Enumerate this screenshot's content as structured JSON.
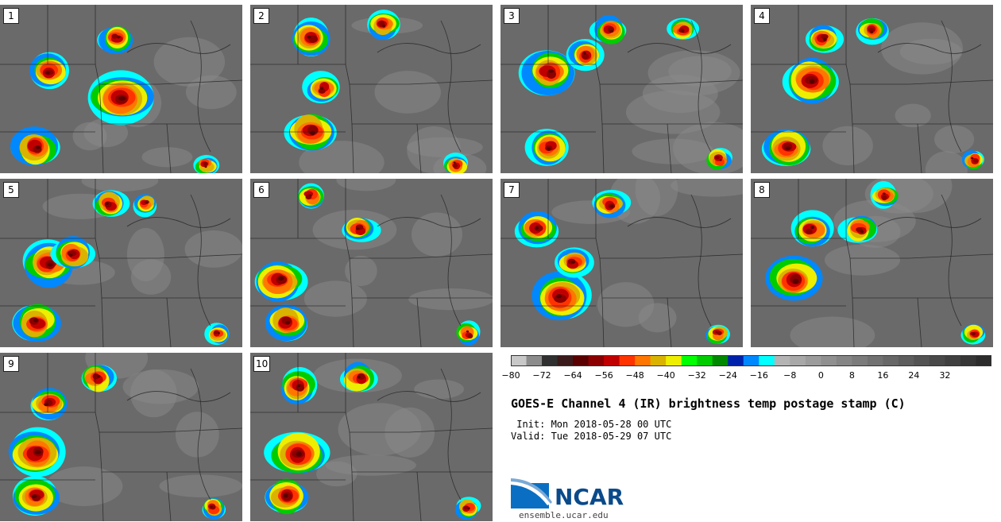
{
  "panels": [
    {
      "label": "1",
      "seed": 11,
      "blobs": [
        [
          0.5,
          0.55,
          0.55
        ],
        [
          0.2,
          0.4,
          0.35
        ],
        [
          0.15,
          0.85,
          0.4
        ],
        [
          0.48,
          0.2,
          0.3
        ],
        [
          0.85,
          0.95,
          0.2
        ]
      ]
    },
    {
      "label": "2",
      "seed": 23,
      "blobs": [
        [
          0.25,
          0.75,
          0.45
        ],
        [
          0.25,
          0.2,
          0.35
        ],
        [
          0.3,
          0.5,
          0.3
        ],
        [
          0.55,
          0.12,
          0.3
        ],
        [
          0.85,
          0.95,
          0.22
        ]
      ]
    },
    {
      "label": "3",
      "seed": 37,
      "blobs": [
        [
          0.2,
          0.4,
          0.45
        ],
        [
          0.2,
          0.85,
          0.35
        ],
        [
          0.35,
          0.3,
          0.3
        ],
        [
          0.45,
          0.15,
          0.3
        ],
        [
          0.75,
          0.15,
          0.25
        ],
        [
          0.9,
          0.92,
          0.22
        ]
      ]
    },
    {
      "label": "4",
      "seed": 41,
      "blobs": [
        [
          0.25,
          0.45,
          0.5
        ],
        [
          0.15,
          0.85,
          0.4
        ],
        [
          0.3,
          0.2,
          0.3
        ],
        [
          0.5,
          0.15,
          0.25
        ],
        [
          0.92,
          0.92,
          0.2
        ]
      ]
    },
    {
      "label": "5",
      "seed": 53,
      "blobs": [
        [
          0.2,
          0.5,
          0.45
        ],
        [
          0.15,
          0.85,
          0.4
        ],
        [
          0.3,
          0.45,
          0.35
        ],
        [
          0.45,
          0.15,
          0.3
        ],
        [
          0.6,
          0.15,
          0.2
        ],
        [
          0.9,
          0.92,
          0.2
        ]
      ]
    },
    {
      "label": "6",
      "seed": 67,
      "blobs": [
        [
          0.12,
          0.6,
          0.45
        ],
        [
          0.15,
          0.85,
          0.4
        ],
        [
          0.45,
          0.3,
          0.3
        ],
        [
          0.25,
          0.1,
          0.25
        ],
        [
          0.9,
          0.92,
          0.22
        ]
      ]
    },
    {
      "label": "7",
      "seed": 79,
      "blobs": [
        [
          0.25,
          0.7,
          0.5
        ],
        [
          0.15,
          0.3,
          0.35
        ],
        [
          0.3,
          0.5,
          0.3
        ],
        [
          0.45,
          0.15,
          0.3
        ],
        [
          0.9,
          0.92,
          0.2
        ]
      ]
    },
    {
      "label": "8",
      "seed": 83,
      "blobs": [
        [
          0.18,
          0.6,
          0.5
        ],
        [
          0.25,
          0.3,
          0.35
        ],
        [
          0.45,
          0.3,
          0.3
        ],
        [
          0.55,
          0.1,
          0.25
        ],
        [
          0.92,
          0.92,
          0.2
        ]
      ]
    },
    {
      "label": "9",
      "seed": 97,
      "blobs": [
        [
          0.15,
          0.6,
          0.5
        ],
        [
          0.15,
          0.85,
          0.4
        ],
        [
          0.2,
          0.3,
          0.35
        ],
        [
          0.4,
          0.15,
          0.3
        ],
        [
          0.88,
          0.92,
          0.22
        ]
      ]
    },
    {
      "label": "10",
      "seed": 101,
      "blobs": [
        [
          0.2,
          0.6,
          0.5
        ],
        [
          0.15,
          0.85,
          0.4
        ],
        [
          0.2,
          0.2,
          0.35
        ],
        [
          0.45,
          0.15,
          0.3
        ],
        [
          0.9,
          0.92,
          0.22
        ]
      ]
    }
  ],
  "colorbar": {
    "ticks": [
      "-80",
      "-72",
      "-64",
      "-56",
      "-48",
      "-40",
      "-32",
      "-24",
      "-16",
      "-8",
      "0",
      "8",
      "16",
      "24",
      "32"
    ],
    "colors": [
      "#c8c8c8",
      "#8c8c8c",
      "#303030",
      "#3a1a1a",
      "#5a0000",
      "#8b0000",
      "#c00000",
      "#ff3300",
      "#ff7700",
      "#d9b300",
      "#eeee00",
      "#00ff00",
      "#00cc00",
      "#008800",
      "#0022aa",
      "#0088ff",
      "#00ffff",
      "#b4b4b4",
      "#a8a8a8",
      "#9c9c9c",
      "#909090",
      "#858585",
      "#7b7b7b",
      "#717171",
      "#676767",
      "#5d5d5d",
      "#535353",
      "#494949",
      "#404040",
      "#363636",
      "#2c2c2c"
    ]
  },
  "title": "GOES-E Channel 4 (IR) brightness temp postage stamp (C)",
  "init": " Init: Mon 2018-05-28 00 UTC",
  "valid": "Valid: Tue 2018-05-29 07 UTC",
  "logo": {
    "name": "NCAR",
    "url": "ensemble.ucar.edu"
  }
}
